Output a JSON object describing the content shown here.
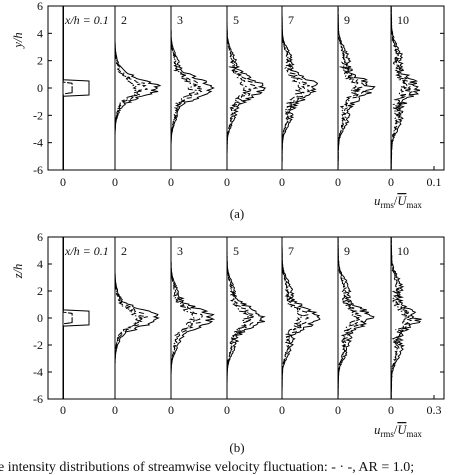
{
  "figure": {
    "caption": "e intensity distributions of streamwise velocity fluctuation: - · -, AR = 1.0;"
  },
  "chart_data": [
    {
      "type": "line",
      "panel_label": "(a)",
      "ylabel": "y/h",
      "xlabel": "u_rms/Ū_max",
      "ylim": [
        -6,
        6
      ],
      "y_ticks": [
        "6",
        "4",
        "2",
        "0",
        "-2",
        "-4",
        "-6"
      ],
      "x_ticks": [
        "0",
        "0",
        "0",
        "0",
        "0",
        "0",
        "0",
        "0.1"
      ],
      "stations": [
        "x/h = 0.1",
        "2",
        "3",
        "5",
        "7",
        "9",
        "10"
      ],
      "grid": false,
      "series_styles": [
        "solid",
        "dashed",
        "dash-dot"
      ]
    },
    {
      "type": "line",
      "panel_label": "(b)",
      "ylabel": "z/h",
      "xlabel": "u_rms/Ū_max",
      "ylim": [
        -6,
        6
      ],
      "y_ticks": [
        "6",
        "4",
        "2",
        "0",
        "-2",
        "-4",
        "-6"
      ],
      "x_ticks": [
        "0",
        "0",
        "0",
        "0",
        "0",
        "0",
        "0",
        "0.3"
      ],
      "stations": [
        "x/h = 0.1",
        "2",
        "3",
        "5",
        "7",
        "9",
        "10"
      ],
      "grid": false,
      "series_styles": [
        "solid",
        "dashed",
        "dash-dot"
      ]
    }
  ]
}
